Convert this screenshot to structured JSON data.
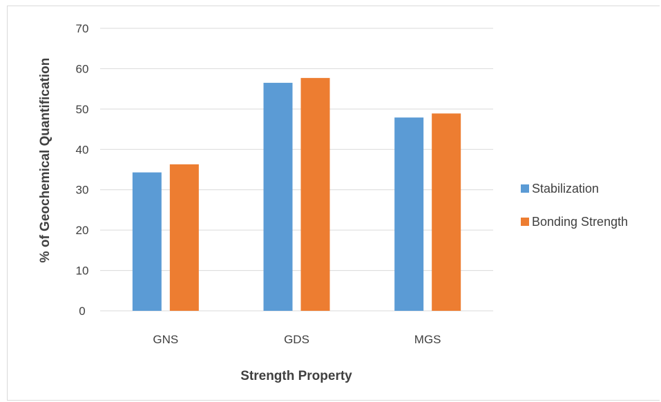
{
  "chart_data": {
    "type": "bar",
    "categories": [
      "GNS",
      "GDS",
      "MGS"
    ],
    "series": [
      {
        "name": "Stabilization",
        "color": "#5b9bd5",
        "values": [
          34.3,
          56.5,
          47.9
        ]
      },
      {
        "name": "Bonding Strength",
        "color": "#ed7d31",
        "values": [
          36.3,
          57.7,
          48.9
        ]
      }
    ],
    "xlabel": "Strength Property",
    "ylabel": "% of Geochemical Quantification",
    "ylim": [
      0,
      70
    ],
    "yticks": [
      0,
      10,
      20,
      30,
      40,
      50,
      60,
      70
    ],
    "grid": true,
    "legend_position": "right"
  }
}
